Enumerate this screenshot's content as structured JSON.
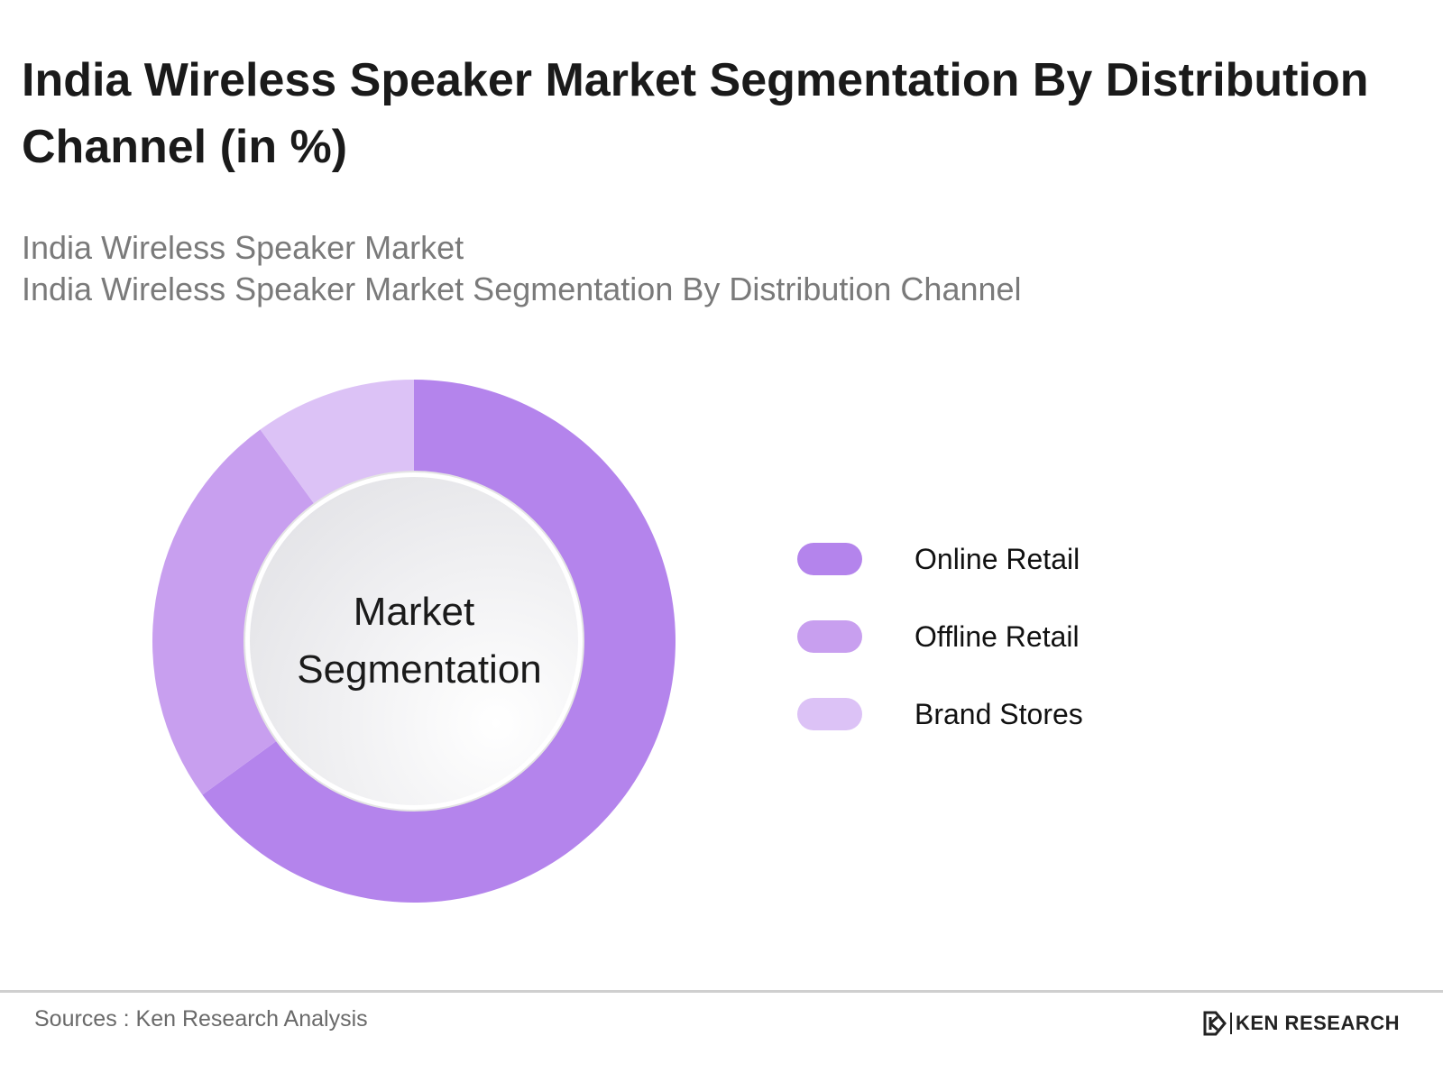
{
  "title": "India Wireless Speaker Market Segmentation By Distribution Channel (in %)",
  "subtitles": [
    "India Wireless Speaker Market",
    "India Wireless Speaker Market Segmentation By Distribution Channel"
  ],
  "center_label": [
    "Market",
    "Segmentation"
  ],
  "footer": {
    "source": "Sources : Ken Research Analysis",
    "logo_text": "KEN RESEARCH"
  },
  "colors": {
    "online": "#b484ec",
    "offline": "#c89fef",
    "brand": "#dcc2f6",
    "center_fill": "#efefef",
    "title": "#1a1a1a",
    "subtitle": "#7a7a7a"
  },
  "chart_data": {
    "type": "pie",
    "variant": "donut",
    "title": "India Wireless Speaker Market Segmentation By Distribution Channel (in %)",
    "categories": [
      "Online Retail",
      "Offline Retail",
      "Brand Stores"
    ],
    "values": [
      65,
      25,
      10
    ],
    "unit": "%",
    "legend_position": "right",
    "start_angle": "top, clockwise"
  }
}
